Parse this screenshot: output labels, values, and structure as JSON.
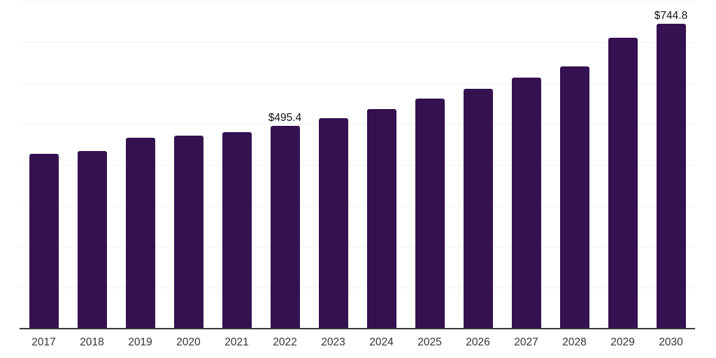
{
  "chart_data": {
    "type": "bar",
    "title": "",
    "xlabel": "",
    "ylabel": "",
    "categories": [
      "2017",
      "2018",
      "2019",
      "2020",
      "2021",
      "2022",
      "2023",
      "2024",
      "2025",
      "2026",
      "2027",
      "2028",
      "2029",
      "2030"
    ],
    "values": [
      427,
      434,
      467,
      472,
      481,
      495.4,
      515,
      536,
      562,
      587,
      614,
      641,
      711,
      744.8
    ],
    "point_labels": [
      "",
      "",
      "",
      "",
      "",
      "$495.4",
      "",
      "",
      "",
      "",
      "",
      "",
      "",
      "$744.8"
    ],
    "ylim": [
      0,
      800
    ],
    "gridline_step": 100,
    "grid": true,
    "legend": false
  },
  "colors": {
    "background": "#ffffff",
    "bar": "#341150",
    "gridline": "#f2f2f2",
    "axis_line": "#3a393e",
    "tick_label": "#333333",
    "value_label": "#111111"
  }
}
